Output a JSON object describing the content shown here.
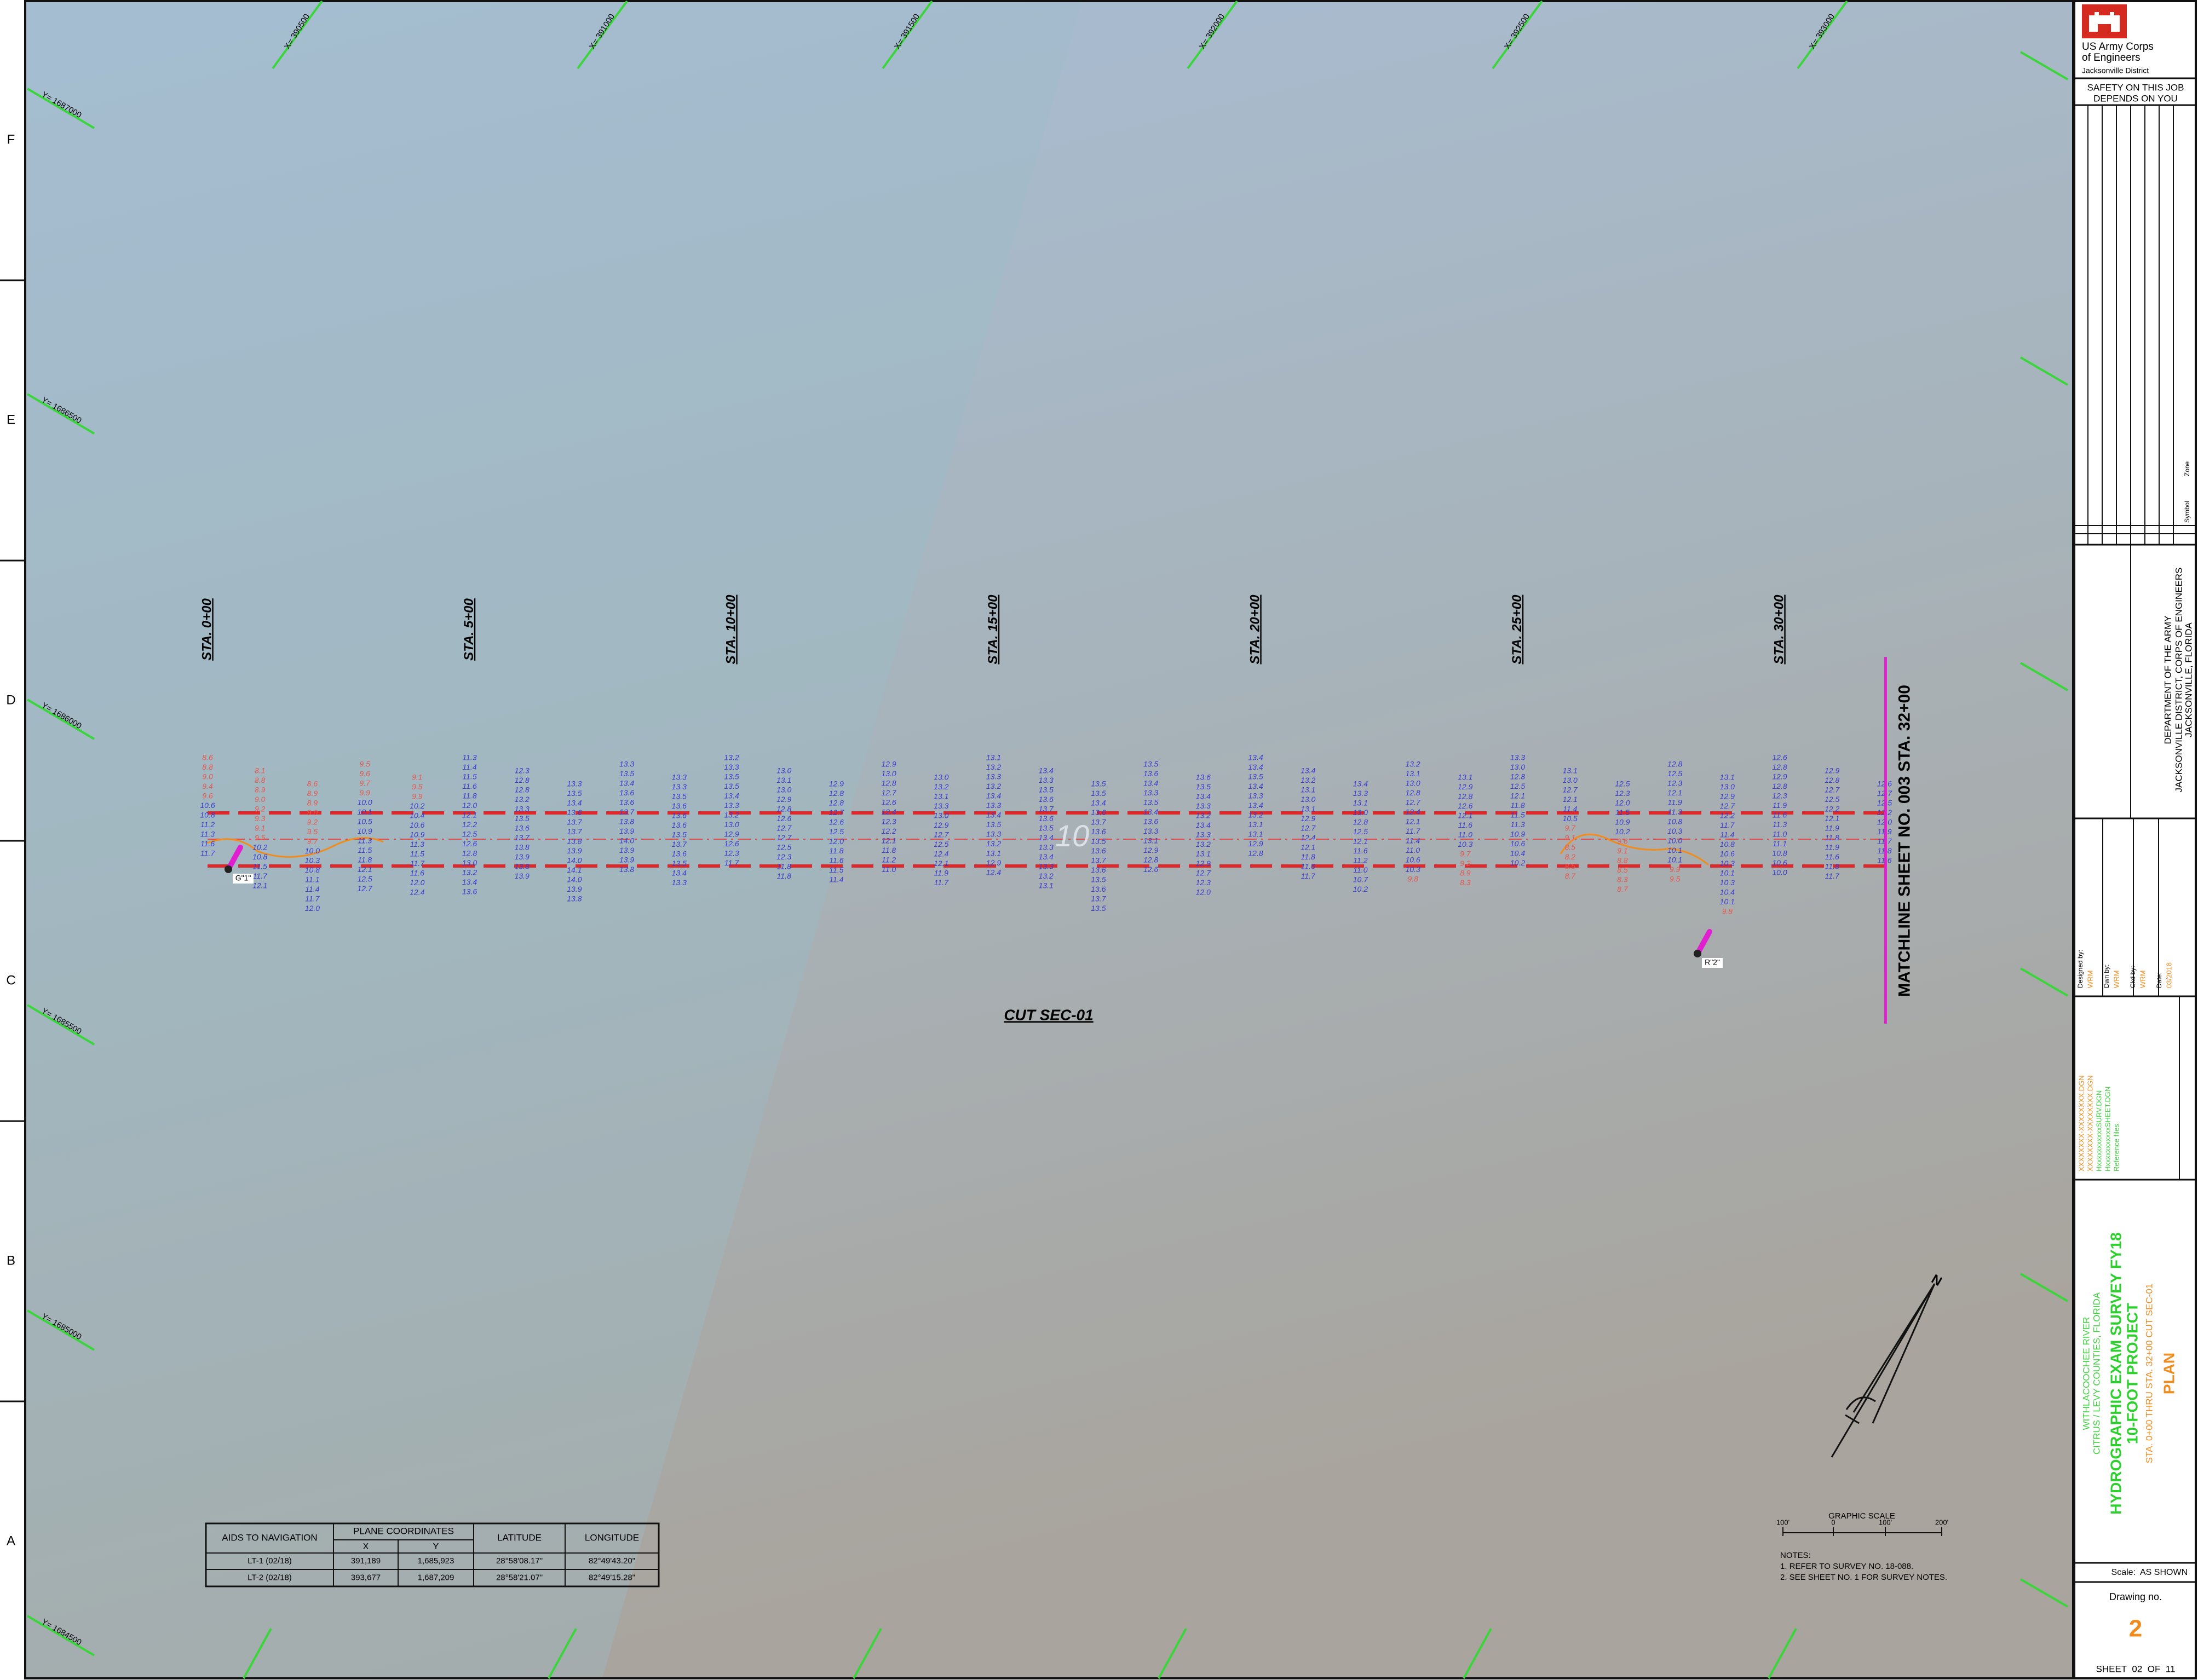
{
  "zones": [
    "F",
    "E",
    "D",
    "C",
    "B",
    "A"
  ],
  "grid": {
    "x_labels": [
      "X= 390500",
      "X= 391000",
      "X= 391500",
      "X= 392000",
      "X= 392500",
      "X= 393000"
    ],
    "y_labels": [
      "Y= 1687000",
      "Y= 1686500",
      "Y= 1686000",
      "Y= 1685500",
      "Y= 1685000",
      "Y= 1684500"
    ]
  },
  "stations": [
    "STA. 0+00",
    "STA. 5+00",
    "STA. 10+00",
    "STA. 15+00",
    "STA. 20+00",
    "STA. 25+00",
    "STA. 30+00"
  ],
  "soundings": {
    "shoal_limit": 10,
    "shoal_color": "#e8584f",
    "depth_color": "#3a3ad0",
    "columns": [
      [
        "8.6",
        "8.8",
        "9.0",
        "9.4",
        "9.6",
        "10.6",
        "10.8",
        "11.2",
        "11.3",
        "11.6",
        "11.7"
      ],
      [
        "8.1",
        "8.8",
        "8.9",
        "9.0",
        "9.2",
        "9.3",
        "9.1",
        "9.5",
        "10.2",
        "10.8",
        "11.5",
        "11.7",
        "12.1"
      ],
      [
        "8.6",
        "8.9",
        "8.9",
        "9.0",
        "9.2",
        "9.5",
        "9.7",
        "10.0",
        "10.3",
        "10.8",
        "11.1",
        "11.4",
        "11.7",
        "12.0"
      ],
      [
        "9.5",
        "9.6",
        "9.7",
        "9.9",
        "10.0",
        "10.1",
        "10.5",
        "10.9",
        "11.3",
        "11.5",
        "11.8",
        "12.1",
        "12.5",
        "12.7"
      ],
      [
        "9.1",
        "9.5",
        "9.9",
        "10.2",
        "10.4",
        "10.6",
        "10.9",
        "11.3",
        "11.5",
        "11.7",
        "11.6",
        "12.0",
        "12.4"
      ],
      [
        "11.3",
        "11.4",
        "11.5",
        "11.6",
        "11.8",
        "12.0",
        "12.1",
        "12.2",
        "12.5",
        "12.6",
        "12.8",
        "13.0",
        "13.2",
        "13.4",
        "13.6"
      ],
      [
        "12.3",
        "12.8",
        "12.8",
        "13.2",
        "13.3",
        "13.5",
        "13.6",
        "13.7",
        "13.8",
        "13.9",
        "13.8",
        "13.9"
      ],
      [
        "13.3",
        "13.5",
        "13.4",
        "13.6",
        "13.7",
        "13.7",
        "13.8",
        "13.9",
        "14.0",
        "14.1",
        "14.0",
        "13.9",
        "13.8"
      ],
      [
        "13.3",
        "13.5",
        "13.4",
        "13.6",
        "13.6",
        "13.7",
        "13.8",
        "13.9",
        "14.0",
        "13.9",
        "13.9",
        "13.8"
      ],
      [
        "13.3",
        "13.3",
        "13.5",
        "13.6",
        "13.6",
        "13.6",
        "13.5",
        "13.7",
        "13.6",
        "13.5",
        "13.4",
        "13.3"
      ],
      [
        "13.2",
        "13.3",
        "13.5",
        "13.5",
        "13.4",
        "13.3",
        "13.2",
        "13.0",
        "12.9",
        "12.6",
        "12.3",
        "11.7"
      ],
      [
        "13.0",
        "13.1",
        "13.0",
        "12.9",
        "12.8",
        "12.6",
        "12.7",
        "12.7",
        "12.5",
        "12.3",
        "11.8",
        "11.8"
      ],
      [
        "12.9",
        "12.8",
        "12.8",
        "12.7",
        "12.6",
        "12.5",
        "12.0",
        "11.8",
        "11.6",
        "11.5",
        "11.4"
      ],
      [
        "12.9",
        "13.0",
        "12.8",
        "12.7",
        "12.6",
        "12.4",
        "12.3",
        "12.2",
        "12.1",
        "11.8",
        "11.2",
        "11.0"
      ],
      [
        "13.0",
        "13.2",
        "13.1",
        "13.3",
        "13.0",
        "12.9",
        "12.7",
        "12.5",
        "12.4",
        "12.1",
        "11.9",
        "11.7"
      ],
      [
        "13.1",
        "13.2",
        "13.3",
        "13.2",
        "13.4",
        "13.3",
        "13.4",
        "13.5",
        "13.3",
        "13.2",
        "13.1",
        "12.9",
        "12.4"
      ],
      [
        "13.4",
        "13.3",
        "13.5",
        "13.6",
        "13.7",
        "13.6",
        "13.5",
        "13.4",
        "13.3",
        "13.4",
        "13.3",
        "13.2",
        "13.1"
      ],
      [
        "13.5",
        "13.5",
        "13.4",
        "13.6",
        "13.7",
        "13.6",
        "13.5",
        "13.6",
        "13.7",
        "13.6",
        "13.5",
        "13.6",
        "13.7",
        "13.5"
      ],
      [
        "13.5",
        "13.6",
        "13.4",
        "13.3",
        "13.5",
        "13.4",
        "13.6",
        "13.3",
        "13.1",
        "12.9",
        "12.8",
        "12.6"
      ],
      [
        "13.6",
        "13.5",
        "13.4",
        "13.3",
        "13.2",
        "13.4",
        "13.3",
        "13.2",
        "13.1",
        "12.9",
        "12.7",
        "12.3",
        "12.0"
      ],
      [
        "13.4",
        "13.4",
        "13.5",
        "13.4",
        "13.3",
        "13.4",
        "13.2",
        "13.1",
        "13.1",
        "12.9",
        "12.8"
      ],
      [
        "13.4",
        "13.2",
        "13.1",
        "13.0",
        "13.1",
        "12.9",
        "12.7",
        "12.4",
        "12.1",
        "11.8",
        "11.6",
        "11.7"
      ],
      [
        "13.4",
        "13.3",
        "13.1",
        "13.0",
        "12.8",
        "12.5",
        "12.1",
        "11.6",
        "11.2",
        "11.0",
        "10.7",
        "10.2"
      ],
      [
        "13.2",
        "13.1",
        "13.0",
        "12.8",
        "12.7",
        "12.4",
        "12.1",
        "11.7",
        "11.4",
        "11.0",
        "10.6",
        "10.3",
        "9.8"
      ],
      [
        "13.1",
        "12.9",
        "12.8",
        "12.6",
        "12.1",
        "11.6",
        "11.0",
        "10.3",
        "9.7",
        "9.2",
        "8.9",
        "8.3"
      ],
      [
        "13.3",
        "13.0",
        "12.8",
        "12.5",
        "12.1",
        "11.8",
        "11.5",
        "11.3",
        "10.9",
        "10.6",
        "10.4",
        "10.2"
      ],
      [
        "13.1",
        "13.0",
        "12.7",
        "12.1",
        "11.4",
        "10.5",
        "9.7",
        "9.1",
        "8.5",
        "8.2",
        "8.5",
        "8.7"
      ],
      [
        "12.5",
        "12.3",
        "12.0",
        "11.5",
        "10.9",
        "10.2",
        "9.6",
        "9.1",
        "8.8",
        "8.5",
        "8.3",
        "8.7"
      ],
      [
        "12.8",
        "12.5",
        "12.3",
        "12.1",
        "11.9",
        "11.3",
        "10.8",
        "10.3",
        "10.0",
        "10.1",
        "10.1",
        "9.9",
        "9.5"
      ],
      [
        "13.1",
        "13.0",
        "12.9",
        "12.7",
        "12.2",
        "11.7",
        "11.4",
        "10.8",
        "10.6",
        "10.3",
        "10.1",
        "10.3",
        "10.4",
        "10.1",
        "9.8"
      ],
      [
        "12.6",
        "12.8",
        "12.9",
        "12.8",
        "12.3",
        "11.9",
        "11.6",
        "11.3",
        "11.0",
        "11.1",
        "10.8",
        "10.6",
        "10.0"
      ],
      [
        "12.9",
        "12.8",
        "12.7",
        "12.5",
        "12.2",
        "12.1",
        "11.9",
        "11.8",
        "11.9",
        "11.6",
        "11.8",
        "11.7"
      ],
      [
        "12.6",
        "12.7",
        "12.5",
        "12.2",
        "12.0",
        "11.9",
        "11.7",
        "11.8",
        "11.6"
      ]
    ]
  },
  "plan": {
    "label": "CUT SEC-01",
    "contour": "10",
    "matchline": "MATCHLINE SHEET NO. 003 STA. 32+00",
    "buoys": [
      "G\"1\"",
      "R\"2\""
    ]
  },
  "aids_table": {
    "header": [
      "AIDS TO NAVIGATION",
      "PLANE COORDINATES",
      "LATITUDE",
      "LONGITUDE"
    ],
    "subheader": [
      "X",
      "Y"
    ],
    "rows": [
      [
        "LT-1 (02/18)",
        "391,189",
        "1,685,923",
        "28°58'08.17\"",
        "82°49'43.20\""
      ],
      [
        "LT-2 (02/18)",
        "393,677",
        "1,687,209",
        "28°58'21.07\"",
        "82°49'15.28\""
      ]
    ]
  },
  "scale": {
    "title": "GRAPHIC SCALE",
    "labels": [
      "100'",
      "0",
      "100'",
      "200'"
    ]
  },
  "notes": [
    "NOTES:",
    "1. REFER TO SURVEY NO. 18-088.",
    "2. SEE SHEET NO. 1 FOR SURVEY NOTES."
  ],
  "north": "N",
  "title_block": {
    "agency": [
      "US Army Corps",
      "of Engineers",
      "Jacksonville District"
    ],
    "safety": [
      "SAFETY ON THIS JOB",
      "DEPENDS ON YOU"
    ],
    "revision_headers": [
      "Symbol",
      "Zone"
    ],
    "office": [
      "DEPARTMENT OF THE ARMY",
      "JACKSONVILLE DISTRICT, CORPS OF ENGINEERS",
      "JACKSONVILLE, FLORIDA"
    ],
    "credits": [
      [
        "Designed by:",
        "WRM"
      ],
      [
        "Dwn by:",
        "WRM"
      ],
      [
        "Ckd by:",
        "WRM"
      ],
      [
        "Date:",
        "03/2018"
      ]
    ],
    "files": [
      "XXXXXXXX-XXXXXXXX.DGN",
      "XXXXXXXX-XXXXXXXX.DGN",
      "HxxxxxxxxxxxSURV.DGN",
      "HxxxxxxxxxxxSHEET.DGN",
      "Reference files"
    ],
    "project": [
      "WITHLACOOCHEE RIVER",
      "CITRUS / LEVY COUNTIES, FLORIDA",
      "HYDROGRAPHIC EXAM SURVEY FY18",
      "10-FOOT PROJECT",
      "STA. 0+00 THRU STA. 32+00 CUT SEC-01",
      "PLAN"
    ],
    "scale": [
      "Scale:",
      "AS SHOWN"
    ],
    "drawing": [
      "Drawing no.",
      "2"
    ],
    "sheet": "SHEET  02  OF  11"
  }
}
